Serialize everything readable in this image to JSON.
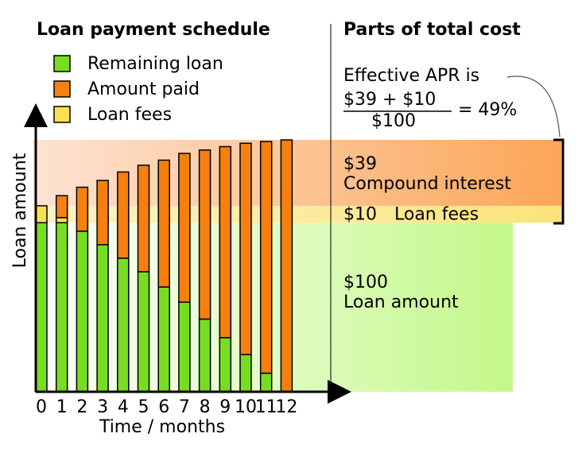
{
  "chart_data": {
    "type": "stacked-bar",
    "title": "Loan payment schedule",
    "side_title": "Parts of total cost",
    "x_label": "Time / months",
    "y_label": "Loan amount",
    "x": [
      0,
      1,
      2,
      3,
      4,
      5,
      6,
      7,
      8,
      9,
      10,
      11,
      12
    ],
    "xticks": [
      0,
      1,
      2,
      3,
      4,
      5,
      6,
      7,
      8,
      9,
      10,
      11,
      12
    ],
    "series": [
      {
        "name": "Remaining loan",
        "color": "#77dd22",
        "values": [
          100,
          100,
          95,
          87,
          79,
          71,
          62,
          53,
          43,
          32,
          22,
          11,
          0
        ]
      },
      {
        "name": "Loan fees",
        "color": "#f9e050",
        "values": [
          10,
          3,
          0,
          0,
          0,
          0,
          0,
          0,
          0,
          0,
          0,
          0,
          0
        ]
      },
      {
        "name": "Amount paid",
        "color": "#f57f0f",
        "values": [
          0,
          13,
          26,
          38,
          51,
          63,
          75,
          88,
          100,
          113,
          125,
          137,
          149
        ]
      }
    ],
    "legend_order": [
      0,
      2,
      1
    ],
    "apr": {
      "intro": "Effective APR is",
      "numerator": "$39 + $10",
      "denominator": "$100",
      "result": "= 49%"
    },
    "cost_parts": [
      {
        "amount": 39,
        "label": "$39",
        "name": "Compound interest",
        "colors": [
          "#fde3d3",
          "#fca658"
        ]
      },
      {
        "amount": 10,
        "label": "$10",
        "name": "Loan fees",
        "colors": [
          "#fdf3c8",
          "#fbe479"
        ]
      },
      {
        "amount": 100,
        "label": "$100",
        "name": "Loan amount",
        "colors": [
          "#ffffff",
          "#c3f889"
        ]
      }
    ]
  }
}
